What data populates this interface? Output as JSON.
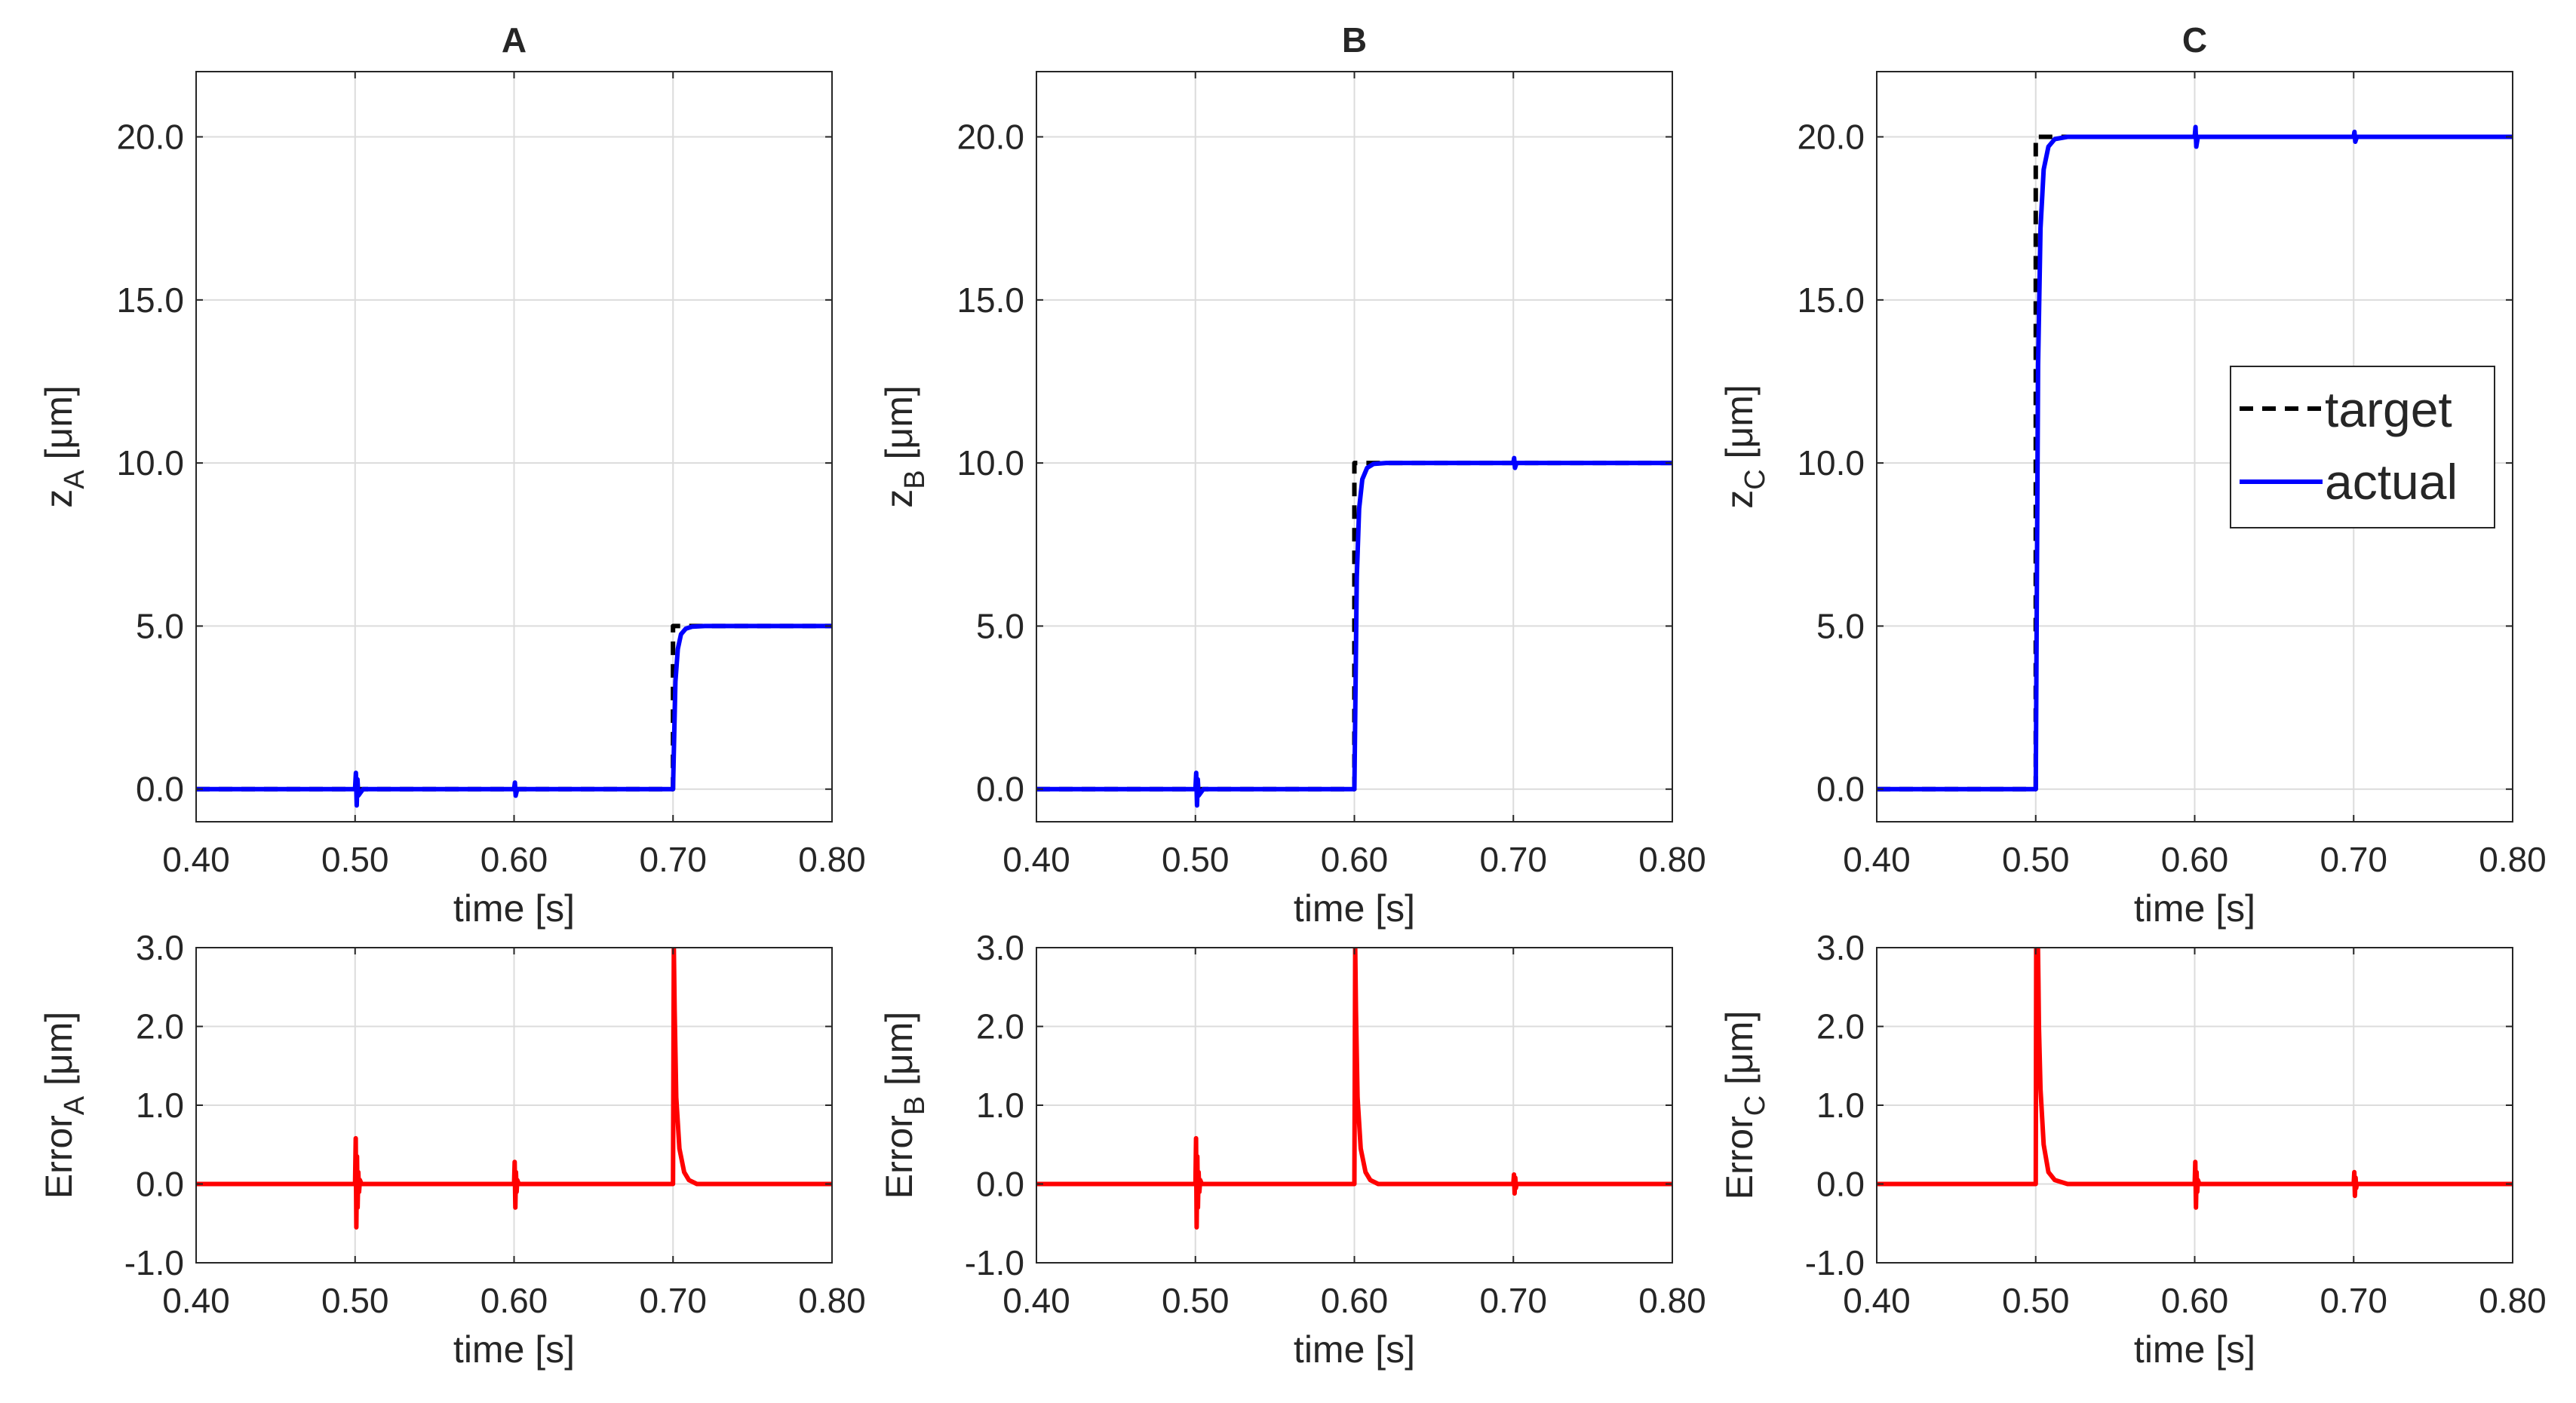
{
  "figure": {
    "legend": {
      "target_label": "target",
      "actual_label": "actual"
    }
  },
  "colors": {
    "target": "#000000",
    "actual": "#0000ff",
    "error": "#ff0000",
    "grid": "#dcdcdc",
    "axis": "#262626"
  },
  "chart_data": [
    {
      "id": "A-top",
      "type": "line",
      "title": "A",
      "xlabel": "time [s]",
      "ylabel_main": "z",
      "ylabel_sub": "A",
      "ylabel_unit": " [μm]",
      "xlim": [
        0.4,
        0.8
      ],
      "ylim": [
        -1.0,
        22.0
      ],
      "xticks": [
        0.4,
        0.5,
        0.6,
        0.7,
        0.8
      ],
      "xticklabels": [
        "0.40",
        "0.50",
        "0.60",
        "0.70",
        "0.80"
      ],
      "yticks": [
        0,
        5,
        10,
        15,
        20
      ],
      "yticklabels": [
        "0.0",
        "5.0",
        "10.0",
        "15.0",
        "20.0"
      ],
      "grid": true,
      "series": [
        {
          "name": "target",
          "style": "dashed",
          "color": "#000000",
          "x": [
            0.4,
            0.7,
            0.7,
            0.8
          ],
          "y": [
            0,
            0,
            5,
            5
          ]
        },
        {
          "name": "actual",
          "style": "solid",
          "color": "#0000ff",
          "x": [
            0.4,
            0.5,
            0.5005,
            0.501,
            0.5015,
            0.502,
            0.505,
            0.6,
            0.6005,
            0.601,
            0.602,
            0.7,
            0.7015,
            0.703,
            0.705,
            0.708,
            0.712,
            0.72,
            0.8
          ],
          "y": [
            0,
            0,
            0.5,
            -0.5,
            0.3,
            -0.2,
            0,
            0,
            0.2,
            -0.2,
            0,
            0,
            3.3,
            4.3,
            4.75,
            4.92,
            4.98,
            5,
            5
          ]
        }
      ]
    },
    {
      "id": "B-top",
      "type": "line",
      "title": "B",
      "xlabel": "time [s]",
      "ylabel_main": "z",
      "ylabel_sub": "B",
      "ylabel_unit": " [μm]",
      "xlim": [
        0.4,
        0.8
      ],
      "ylim": [
        -1.0,
        22.0
      ],
      "xticks": [
        0.4,
        0.5,
        0.6,
        0.7,
        0.8
      ],
      "xticklabels": [
        "0.40",
        "0.50",
        "0.60",
        "0.70",
        "0.80"
      ],
      "yticks": [
        0,
        5,
        10,
        15,
        20
      ],
      "yticklabels": [
        "0.0",
        "5.0",
        "10.0",
        "15.0",
        "20.0"
      ],
      "grid": true,
      "series": [
        {
          "name": "target",
          "style": "dashed",
          "color": "#000000",
          "x": [
            0.4,
            0.6,
            0.6,
            0.8
          ],
          "y": [
            0,
            0,
            10,
            10
          ]
        },
        {
          "name": "actual",
          "style": "solid",
          "color": "#0000ff",
          "x": [
            0.4,
            0.5,
            0.5005,
            0.501,
            0.5015,
            0.502,
            0.505,
            0.6,
            0.6015,
            0.603,
            0.605,
            0.608,
            0.612,
            0.62,
            0.7,
            0.7005,
            0.701,
            0.702,
            0.8
          ],
          "y": [
            0,
            0,
            0.5,
            -0.5,
            0.3,
            -0.2,
            0,
            0,
            6.5,
            8.6,
            9.5,
            9.85,
            9.97,
            10,
            10,
            10.15,
            9.85,
            10,
            10
          ]
        }
      ]
    },
    {
      "id": "C-top",
      "type": "line",
      "title": "C",
      "xlabel": "time [s]",
      "ylabel_main": "z",
      "ylabel_sub": "C",
      "ylabel_unit": " [μm]",
      "xlim": [
        0.4,
        0.8
      ],
      "ylim": [
        -1.0,
        22.0
      ],
      "xticks": [
        0.4,
        0.5,
        0.6,
        0.7,
        0.8
      ],
      "xticklabels": [
        "0.40",
        "0.50",
        "0.60",
        "0.70",
        "0.80"
      ],
      "yticks": [
        0,
        5,
        10,
        15,
        20
      ],
      "yticklabels": [
        "0.0",
        "5.0",
        "10.0",
        "15.0",
        "20.0"
      ],
      "grid": true,
      "legend": true,
      "series": [
        {
          "name": "target",
          "style": "dashed",
          "color": "#000000",
          "x": [
            0.4,
            0.5,
            0.5,
            0.8
          ],
          "y": [
            0,
            0,
            20,
            20
          ]
        },
        {
          "name": "actual",
          "style": "solid",
          "color": "#0000ff",
          "x": [
            0.4,
            0.5,
            0.5015,
            0.503,
            0.505,
            0.508,
            0.512,
            0.52,
            0.6,
            0.6005,
            0.601,
            0.602,
            0.7,
            0.7005,
            0.701,
            0.702,
            0.8
          ],
          "y": [
            0,
            0,
            13,
            17.2,
            19,
            19.7,
            19.93,
            20,
            20,
            20.3,
            19.7,
            20,
            20,
            20.15,
            19.85,
            20,
            20
          ]
        }
      ]
    },
    {
      "id": "A-bottom",
      "type": "line",
      "xlabel": "time [s]",
      "ylabel_main": "Error",
      "ylabel_sub": "A",
      "ylabel_unit": " [μm]",
      "xlim": [
        0.4,
        0.8
      ],
      "ylim": [
        -1.0,
        3.0
      ],
      "xticks": [
        0.4,
        0.5,
        0.6,
        0.7,
        0.8
      ],
      "xticklabels": [
        "0.40",
        "0.50",
        "0.60",
        "0.70",
        "0.80"
      ],
      "yticks": [
        -1,
        0,
        1,
        2,
        3
      ],
      "yticklabels": [
        "-1.0",
        "0.0",
        "1.0",
        "2.0",
        "3.0"
      ],
      "grid": true,
      "series": [
        {
          "name": "error",
          "style": "solid",
          "color": "#ff0000",
          "x": [
            0.4,
            0.5,
            0.5004,
            0.5008,
            0.5012,
            0.5016,
            0.502,
            0.5025,
            0.503,
            0.504,
            0.506,
            0.6,
            0.6004,
            0.6008,
            0.6012,
            0.6016,
            0.602,
            0.603,
            0.7,
            0.7005,
            0.701,
            0.702,
            0.704,
            0.707,
            0.71,
            0.715,
            0.8
          ],
          "y": [
            0,
            0,
            0.58,
            -0.55,
            0.35,
            -0.3,
            0.15,
            -0.1,
            0.05,
            0,
            0,
            0,
            0.28,
            -0.3,
            0.15,
            -0.1,
            0.05,
            0,
            0,
            3.0,
            2.2,
            1.1,
            0.45,
            0.15,
            0.05,
            0,
            0
          ]
        }
      ]
    },
    {
      "id": "B-bottom",
      "type": "line",
      "xlabel": "time [s]",
      "ylabel_main": "Error",
      "ylabel_sub": "B",
      "ylabel_unit": " [μm]",
      "xlim": [
        0.4,
        0.8
      ],
      "ylim": [
        -1.0,
        3.0
      ],
      "xticks": [
        0.4,
        0.5,
        0.6,
        0.7,
        0.8
      ],
      "xticklabels": [
        "0.40",
        "0.50",
        "0.60",
        "0.70",
        "0.80"
      ],
      "yticks": [
        -1,
        0,
        1,
        2,
        3
      ],
      "yticklabels": [
        "-1.0",
        "0.0",
        "1.0",
        "2.0",
        "3.0"
      ],
      "grid": true,
      "series": [
        {
          "name": "error",
          "style": "solid",
          "color": "#ff0000",
          "x": [
            0.4,
            0.5,
            0.5004,
            0.5008,
            0.5012,
            0.5016,
            0.502,
            0.5025,
            0.503,
            0.504,
            0.6,
            0.6005,
            0.601,
            0.602,
            0.604,
            0.607,
            0.61,
            0.615,
            0.7,
            0.7004,
            0.7008,
            0.7012,
            0.7016,
            0.702,
            0.8
          ],
          "y": [
            0,
            0,
            0.58,
            -0.55,
            0.35,
            -0.3,
            0.15,
            -0.1,
            0.05,
            0,
            0,
            3.0,
            2.2,
            1.1,
            0.45,
            0.15,
            0.05,
            0,
            0,
            0.12,
            -0.12,
            0.08,
            -0.05,
            0,
            0
          ]
        }
      ]
    },
    {
      "id": "C-bottom",
      "type": "line",
      "xlabel": "time [s]",
      "ylabel_main": "Error",
      "ylabel_sub": "C",
      "ylabel_unit": " [μm]",
      "xlim": [
        0.4,
        0.8
      ],
      "ylim": [
        -1.0,
        3.0
      ],
      "xticks": [
        0.4,
        0.5,
        0.6,
        0.7,
        0.8
      ],
      "xticklabels": [
        "0.40",
        "0.50",
        "0.60",
        "0.70",
        "0.80"
      ],
      "yticks": [
        -1,
        0,
        1,
        2,
        3
      ],
      "yticklabels": [
        "-1.0",
        "0.0",
        "1.0",
        "2.0",
        "3.0"
      ],
      "grid": true,
      "series": [
        {
          "name": "error",
          "style": "solid",
          "color": "#ff0000",
          "x": [
            0.4,
            0.5,
            0.5003,
            0.5014,
            0.5017,
            0.502,
            0.503,
            0.505,
            0.508,
            0.512,
            0.52,
            0.6,
            0.6004,
            0.6008,
            0.6012,
            0.6016,
            0.602,
            0.603,
            0.7,
            0.7004,
            0.7008,
            0.7012,
            0.7016,
            0.702,
            0.8
          ],
          "y": [
            0,
            0,
            3.0,
            3.0,
            2.6,
            2.0,
            1.2,
            0.5,
            0.15,
            0.05,
            0,
            0,
            0.28,
            -0.3,
            0.15,
            -0.1,
            0.05,
            0,
            0,
            0.15,
            -0.15,
            0.08,
            -0.05,
            0,
            0
          ]
        }
      ]
    }
  ]
}
